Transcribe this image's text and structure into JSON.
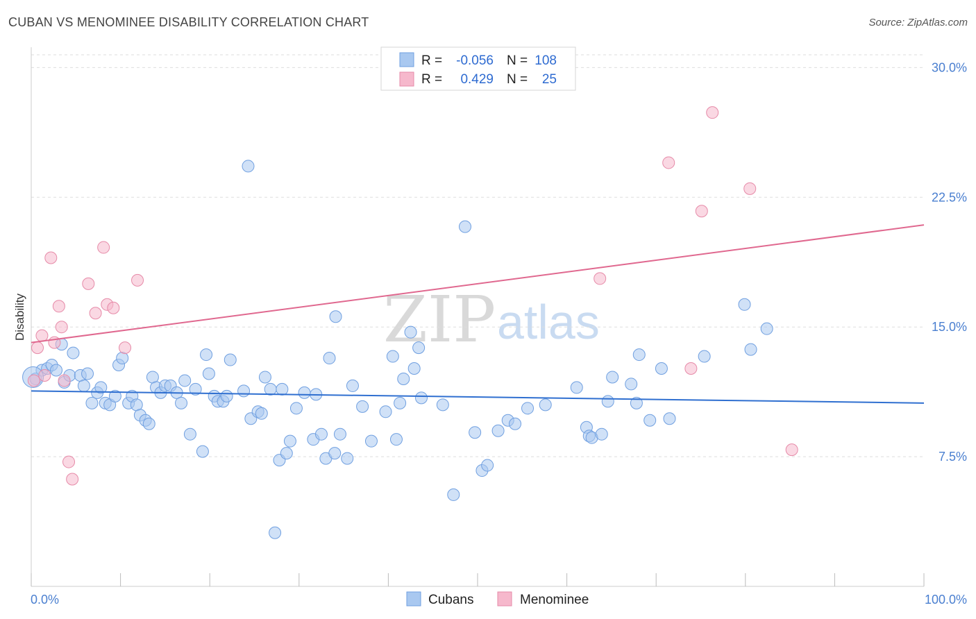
{
  "title": "CUBAN VS MENOMINEE DISABILITY CORRELATION CHART",
  "source": "Source: ZipAtlas.com",
  "watermark": {
    "part1": "ZIP",
    "part2": "atlas"
  },
  "legend": {
    "rows": [
      {
        "r_label": "R =",
        "r_value": "-0.056",
        "n_label": "N =",
        "n_value": "108",
        "color": "#a9c8f0"
      },
      {
        "r_label": "R =",
        "r_value": "0.429",
        "n_label": "N =",
        "n_value": "25",
        "color": "#f6b8cc"
      }
    ]
  },
  "bottom_legend": [
    {
      "label": "Cubans",
      "color": "#a9c8f0"
    },
    {
      "label": "Menominee",
      "color": "#f6b8cc"
    }
  ],
  "colors": {
    "cubans_fill": "#a9c8f0",
    "cubans_stroke": "#6f9fe0",
    "cubans_line": "#2f6fd0",
    "menominee_fill": "#f6b8cc",
    "menominee_stroke": "#e68aa8",
    "menominee_line": "#e0688f",
    "tick_label": "#4a7fd0",
    "grid": "#dddddd"
  },
  "chart_data": {
    "type": "scatter",
    "title": "CUBAN VS MENOMINEE DISABILITY CORRELATION CHART",
    "xlabel": "",
    "ylabel": "Disability",
    "xlim": [
      0,
      100
    ],
    "ylim": [
      0,
      31.5
    ],
    "x_tick_labels": [
      "0.0%",
      "100.0%"
    ],
    "y_ticks": [
      7.5,
      15.0,
      22.5,
      30.0
    ],
    "y_tick_labels": [
      "7.5%",
      "15.0%",
      "22.5%",
      "30.0%"
    ],
    "grid": "horizontal dashed",
    "series": [
      {
        "name": "Cubans",
        "trend": {
          "x": [
            0,
            100
          ],
          "y": [
            11.3,
            10.6
          ]
        },
        "points": [
          [
            0.5,
            12.0
          ],
          [
            1.2,
            12.5
          ],
          [
            1.8,
            12.6
          ],
          [
            2.3,
            12.8
          ],
          [
            2.8,
            12.5
          ],
          [
            3.4,
            14.0
          ],
          [
            3.7,
            11.8
          ],
          [
            4.3,
            12.2
          ],
          [
            4.7,
            13.5
          ],
          [
            5.5,
            12.2
          ],
          [
            5.9,
            11.6
          ],
          [
            6.3,
            12.3
          ],
          [
            6.8,
            10.6
          ],
          [
            7.4,
            11.2
          ],
          [
            7.8,
            11.5
          ],
          [
            8.3,
            10.6
          ],
          [
            8.8,
            10.5
          ],
          [
            9.4,
            11.0
          ],
          [
            9.8,
            12.8
          ],
          [
            10.2,
            13.2
          ],
          [
            10.9,
            10.6
          ],
          [
            11.3,
            11.0
          ],
          [
            11.8,
            10.5
          ],
          [
            12.2,
            9.9
          ],
          [
            12.8,
            9.6
          ],
          [
            13.2,
            9.4
          ],
          [
            13.6,
            12.1
          ],
          [
            14.0,
            11.5
          ],
          [
            14.5,
            11.2
          ],
          [
            15.0,
            11.6
          ],
          [
            15.6,
            11.6
          ],
          [
            16.3,
            11.2
          ],
          [
            16.8,
            10.6
          ],
          [
            17.2,
            11.9
          ],
          [
            17.8,
            8.8
          ],
          [
            18.4,
            11.4
          ],
          [
            19.2,
            7.8
          ],
          [
            19.6,
            13.4
          ],
          [
            19.9,
            12.3
          ],
          [
            20.5,
            11.0
          ],
          [
            20.9,
            10.7
          ],
          [
            21.5,
            10.7
          ],
          [
            21.9,
            11.0
          ],
          [
            22.3,
            13.1
          ],
          [
            23.8,
            11.3
          ],
          [
            24.3,
            24.3
          ],
          [
            24.6,
            9.7
          ],
          [
            25.4,
            10.1
          ],
          [
            25.8,
            10.0
          ],
          [
            26.2,
            12.1
          ],
          [
            26.8,
            11.4
          ],
          [
            27.3,
            3.1
          ],
          [
            27.8,
            7.3
          ],
          [
            28.1,
            11.4
          ],
          [
            28.6,
            7.7
          ],
          [
            29.0,
            8.4
          ],
          [
            29.7,
            10.3
          ],
          [
            30.6,
            11.2
          ],
          [
            31.6,
            8.5
          ],
          [
            31.9,
            11.1
          ],
          [
            32.5,
            8.8
          ],
          [
            33.0,
            7.4
          ],
          [
            33.4,
            13.2
          ],
          [
            34.0,
            7.7
          ],
          [
            34.1,
            15.6
          ],
          [
            34.6,
            8.8
          ],
          [
            35.4,
            7.4
          ],
          [
            36.0,
            11.6
          ],
          [
            37.1,
            10.4
          ],
          [
            38.1,
            8.4
          ],
          [
            39.7,
            10.1
          ],
          [
            40.5,
            13.3
          ],
          [
            40.9,
            8.5
          ],
          [
            41.3,
            10.6
          ],
          [
            41.7,
            12.0
          ],
          [
            42.5,
            14.7
          ],
          [
            42.9,
            12.6
          ],
          [
            43.4,
            13.8
          ],
          [
            43.7,
            10.9
          ],
          [
            46.1,
            10.5
          ],
          [
            47.3,
            5.3
          ],
          [
            48.6,
            20.8
          ],
          [
            49.7,
            8.9
          ],
          [
            50.5,
            6.7
          ],
          [
            51.1,
            7.0
          ],
          [
            52.3,
            9.0
          ],
          [
            53.4,
            9.6
          ],
          [
            54.2,
            9.4
          ],
          [
            55.6,
            10.3
          ],
          [
            57.6,
            10.5
          ],
          [
            61.1,
            11.5
          ],
          [
            62.2,
            9.2
          ],
          [
            62.5,
            8.7
          ],
          [
            62.8,
            8.6
          ],
          [
            63.9,
            8.8
          ],
          [
            64.6,
            10.7
          ],
          [
            65.1,
            12.1
          ],
          [
            67.2,
            11.7
          ],
          [
            67.8,
            10.6
          ],
          [
            68.1,
            13.4
          ],
          [
            69.3,
            9.6
          ],
          [
            70.6,
            12.6
          ],
          [
            71.5,
            9.7
          ],
          [
            75.4,
            13.3
          ],
          [
            79.9,
            16.3
          ],
          [
            80.6,
            13.7
          ],
          [
            82.4,
            14.9
          ],
          [
            0.2,
            12.1
          ]
        ]
      },
      {
        "name": "Menominee",
        "trend": {
          "x": [
            0,
            100
          ],
          "y": [
            14.1,
            20.9
          ]
        },
        "points": [
          [
            0.3,
            11.9
          ],
          [
            0.7,
            13.8
          ],
          [
            1.2,
            14.5
          ],
          [
            1.5,
            12.2
          ],
          [
            2.2,
            19.0
          ],
          [
            2.6,
            14.1
          ],
          [
            3.1,
            16.2
          ],
          [
            3.4,
            15.0
          ],
          [
            3.7,
            11.9
          ],
          [
            4.2,
            7.2
          ],
          [
            4.6,
            6.2
          ],
          [
            6.4,
            17.5
          ],
          [
            7.2,
            15.8
          ],
          [
            8.1,
            19.6
          ],
          [
            8.5,
            16.3
          ],
          [
            9.2,
            16.1
          ],
          [
            10.5,
            13.8
          ],
          [
            11.9,
            17.7
          ],
          [
            63.7,
            17.8
          ],
          [
            71.4,
            24.5
          ],
          [
            73.9,
            12.6
          ],
          [
            75.1,
            21.7
          ],
          [
            76.3,
            27.4
          ],
          [
            80.5,
            23.0
          ],
          [
            85.2,
            7.9
          ]
        ]
      }
    ]
  }
}
